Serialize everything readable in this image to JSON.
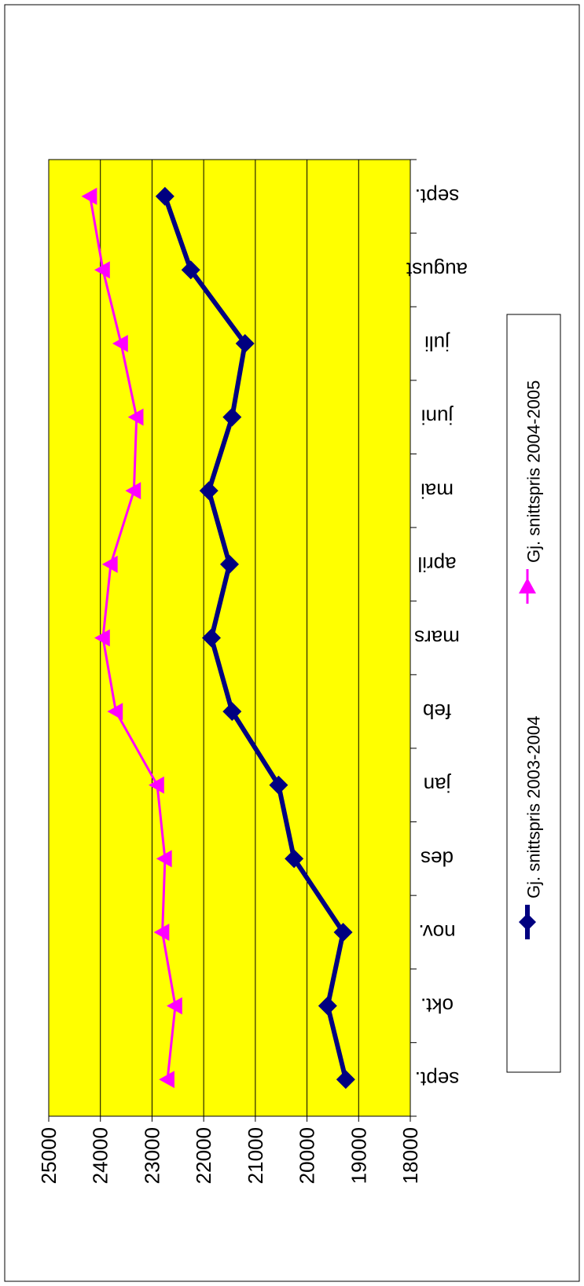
{
  "chart_data": {
    "type": "line",
    "title": "",
    "xlabel": "",
    "ylabel": "",
    "orientation_note": "",
    "categories": [
      "sept.",
      "okt.",
      "nov.",
      "des",
      "jan",
      "feb",
      "mars",
      "april",
      "mai",
      "juni",
      "juli",
      "august",
      "sept."
    ],
    "ylim": [
      18000,
      25000
    ],
    "yticks": [
      25000,
      24000,
      23000,
      22000,
      21000,
      20000,
      19000,
      18000
    ],
    "grid": true,
    "legend_position": "bottom",
    "colors": {
      "plot_area": "#ffff00",
      "series1": "#000080",
      "series2": "#ff00ff"
    },
    "series": [
      {
        "name": "Gj. snittspris 2003-2004",
        "marker": "diamond",
        "color": "#000080",
        "values": [
          19250,
          19600,
          19300,
          20250,
          20550,
          21450,
          21850,
          21500,
          21900,
          21450,
          21200,
          22250,
          22750
        ]
      },
      {
        "name": "Gj. snittspris 2004-2005",
        "marker": "triangle",
        "color": "#ff00ff",
        "values": [
          22700,
          22550,
          22800,
          22750,
          22900,
          23700,
          23950,
          23800,
          23350,
          23300,
          23600,
          23950,
          24200
        ]
      }
    ]
  }
}
